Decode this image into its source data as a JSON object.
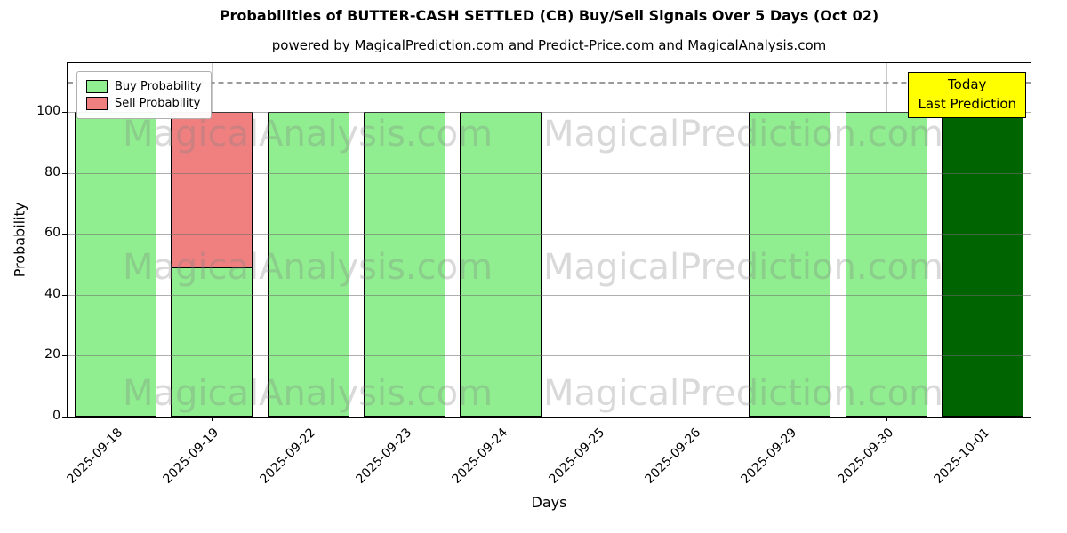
{
  "title": "Probabilities of BUTTER-CASH SETTLED (CB) Buy/Sell Signals Over 5 Days (Oct 02)",
  "subtitle": "powered by MagicalPrediction.com and Predict-Price.com and MagicalAnalysis.com",
  "legend": {
    "items": [
      {
        "label": "Buy Probability",
        "color": "#90ee90"
      },
      {
        "label": "Sell Probability",
        "color": "#f08080"
      }
    ]
  },
  "annotation_box": {
    "lines": [
      "Today",
      "Last Prediction"
    ],
    "bg_color": "#ffff00",
    "border_color": "#000000"
  },
  "watermarks": {
    "texts": [
      "MagicalAnalysis.com",
      "MagicalPrediction.com"
    ],
    "color": "rgba(128,128,128,0.30)"
  },
  "chart_data": {
    "type": "bar",
    "stacked": true,
    "title": "Probabilities of BUTTER-CASH SETTLED (CB) Buy/Sell Signals Over 5 Days (Oct 02)",
    "xlabel": "Days",
    "ylabel": "Probability",
    "categories": [
      "2025-09-18",
      "2025-09-19",
      "2025-09-22",
      "2025-09-23",
      "2025-09-24",
      "2025-09-25",
      "2025-09-26",
      "2025-09-29",
      "2025-09-30",
      "2025-10-01"
    ],
    "series": [
      {
        "name": "Buy Probability",
        "color": "#90ee90",
        "values": [
          100,
          49,
          100,
          100,
          100,
          0,
          0,
          100,
          100,
          100
        ]
      },
      {
        "name": "Sell Probability",
        "color": "#f08080",
        "values": [
          0,
          51,
          0,
          0,
          0,
          0,
          0,
          0,
          0,
          0
        ]
      }
    ],
    "today_bar": {
      "category": "2025-10-01",
      "index": 9,
      "color": "#006400"
    },
    "ylim": [
      0,
      116
    ],
    "yticks": [
      0,
      20,
      40,
      60,
      80,
      100
    ],
    "hline": {
      "y": 110,
      "style": "dashed",
      "color": "#999999"
    },
    "grid": true,
    "bar_edge_color": "#000000",
    "legend_position": "upper left"
  }
}
